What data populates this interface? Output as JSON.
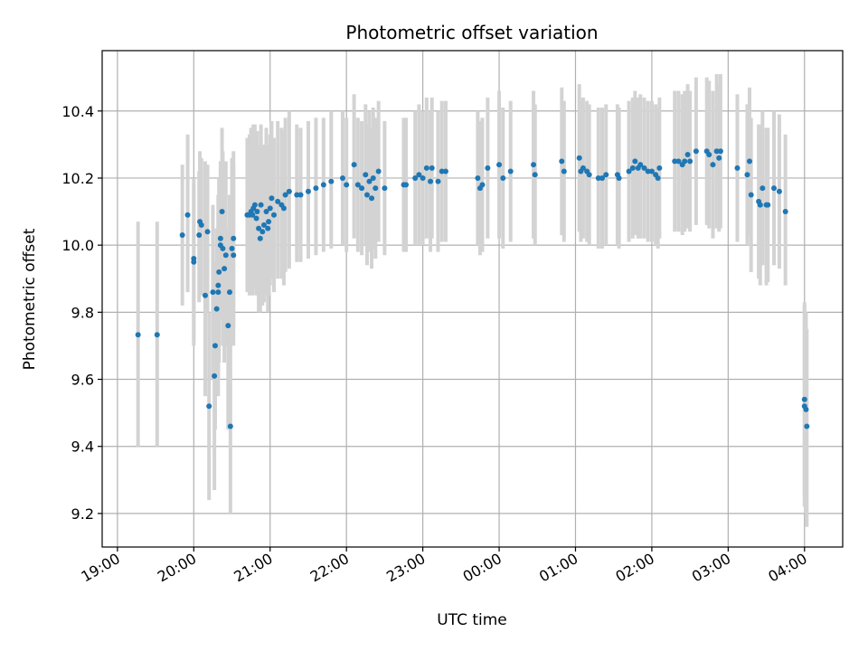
{
  "chart_data": {
    "type": "scatter",
    "title": "Photometric offset variation",
    "xlabel": "UTC time",
    "ylabel": "Photometric offset",
    "x_tick_labels": [
      "19:00",
      "20:00",
      "21:00",
      "22:00",
      "23:00",
      "00:00",
      "01:00",
      "02:00",
      "03:00",
      "04:00"
    ],
    "x_tick_hours": [
      0,
      1,
      2,
      3,
      4,
      5,
      6,
      7,
      8,
      9
    ],
    "x_axis_start": "19:00",
    "x_unit": "hours",
    "xlim": [
      -0.2,
      9.5
    ],
    "y_ticks": [
      9.2,
      9.4,
      9.6,
      9.8,
      10.0,
      10.2,
      10.4
    ],
    "y_tick_labels": [
      "9.2",
      "9.4",
      "9.6",
      "9.8",
      "10.0",
      "10.2",
      "10.4"
    ],
    "ylim": [
      9.1,
      10.58
    ],
    "grid": true,
    "colors": {
      "point": "#1f77b4",
      "errorbar": "#d3d3d3",
      "grid": "#b0b0b0"
    },
    "points": [
      [
        0.27,
        9.733,
        9.4,
        10.07
      ],
      [
        0.52,
        9.733,
        9.4,
        10.07
      ],
      [
        0.85,
        10.03,
        9.82,
        10.24
      ],
      [
        0.92,
        10.09,
        9.86,
        10.33
      ],
      [
        1.0,
        9.96,
        9.7,
        10.2
      ],
      [
        1.0,
        9.95,
        9.72,
        10.18
      ],
      [
        1.07,
        10.03,
        9.83,
        10.22
      ],
      [
        1.08,
        10.07,
        9.86,
        10.28
      ],
      [
        1.1,
        10.06,
        9.85,
        10.26
      ],
      [
        1.15,
        9.85,
        9.55,
        10.25
      ],
      [
        1.18,
        10.04,
        9.8,
        10.24
      ],
      [
        1.2,
        9.52,
        9.24,
        9.8
      ],
      [
        1.25,
        9.86,
        9.6,
        10.12
      ],
      [
        1.27,
        9.61,
        9.27,
        9.9
      ],
      [
        1.28,
        9.7,
        9.45,
        9.95
      ],
      [
        1.3,
        9.81,
        9.55,
        10.05
      ],
      [
        1.32,
        9.86,
        9.55,
        10.15
      ],
      [
        1.32,
        9.88,
        9.6,
        10.1
      ],
      [
        1.33,
        9.92,
        9.65,
        10.2
      ],
      [
        1.35,
        10.02,
        9.8,
        10.25
      ],
      [
        1.35,
        10.0,
        9.78,
        10.22
      ],
      [
        1.37,
        10.1,
        9.84,
        10.35
      ],
      [
        1.38,
        9.99,
        9.7,
        10.28
      ],
      [
        1.4,
        9.93,
        9.65,
        10.2
      ],
      [
        1.42,
        9.97,
        9.7,
        10.25
      ],
      [
        1.45,
        9.76,
        9.45,
        10.05
      ],
      [
        1.47,
        9.86,
        9.55,
        10.15
      ],
      [
        1.48,
        9.46,
        9.2,
        9.75
      ],
      [
        1.5,
        9.99,
        9.72,
        10.26
      ],
      [
        1.52,
        10.02,
        9.75,
        10.28
      ],
      [
        1.52,
        9.97,
        9.7,
        10.24
      ],
      [
        1.7,
        10.09,
        9.86,
        10.32
      ],
      [
        1.73,
        10.09,
        9.85,
        10.33
      ],
      [
        1.75,
        10.1,
        9.88,
        10.35
      ],
      [
        1.77,
        10.09,
        9.85,
        10.33
      ],
      [
        1.78,
        10.11,
        9.87,
        10.36
      ],
      [
        1.8,
        10.12,
        9.88,
        10.36
      ],
      [
        1.82,
        10.08,
        9.85,
        10.3
      ],
      [
        1.83,
        10.1,
        9.87,
        10.34
      ],
      [
        1.85,
        10.05,
        9.8,
        10.3
      ],
      [
        1.87,
        10.02,
        9.8,
        10.25
      ],
      [
        1.88,
        10.12,
        9.88,
        10.36
      ],
      [
        1.9,
        10.04,
        9.82,
        10.26
      ],
      [
        1.92,
        10.06,
        9.83,
        10.3
      ],
      [
        1.95,
        10.1,
        9.85,
        10.35
      ],
      [
        1.97,
        10.05,
        9.8,
        10.3
      ],
      [
        1.98,
        10.07,
        9.85,
        10.28
      ],
      [
        2.0,
        10.11,
        9.88,
        10.33
      ],
      [
        2.02,
        10.14,
        9.9,
        10.37
      ],
      [
        2.05,
        10.09,
        9.86,
        10.32
      ],
      [
        2.1,
        10.13,
        9.9,
        10.37
      ],
      [
        2.15,
        10.12,
        9.9,
        10.35
      ],
      [
        2.18,
        10.11,
        9.88,
        10.34
      ],
      [
        2.2,
        10.15,
        9.92,
        10.38
      ],
      [
        2.25,
        10.16,
        9.93,
        10.4
      ],
      [
        2.35,
        10.15,
        9.95,
        10.36
      ],
      [
        2.4,
        10.15,
        9.95,
        10.35
      ],
      [
        2.5,
        10.16,
        9.96,
        10.37
      ],
      [
        2.6,
        10.17,
        9.97,
        10.38
      ],
      [
        2.7,
        10.18,
        9.98,
        10.38
      ],
      [
        2.8,
        10.19,
        9.99,
        10.4
      ],
      [
        2.95,
        10.2,
        10.0,
        10.4
      ],
      [
        3.0,
        10.18,
        9.98,
        10.38
      ],
      [
        3.1,
        10.24,
        10.02,
        10.45
      ],
      [
        3.15,
        10.18,
        9.98,
        10.38
      ],
      [
        3.2,
        10.17,
        9.97,
        10.37
      ],
      [
        3.25,
        10.21,
        10.0,
        10.42
      ],
      [
        3.27,
        10.15,
        9.94,
        10.36
      ],
      [
        3.3,
        10.19,
        9.98,
        10.4
      ],
      [
        3.33,
        10.14,
        9.93,
        10.35
      ],
      [
        3.35,
        10.2,
        9.99,
        10.41
      ],
      [
        3.38,
        10.17,
        9.96,
        10.38
      ],
      [
        3.42,
        10.22,
        10.01,
        10.43
      ],
      [
        3.5,
        10.17,
        9.97,
        10.37
      ],
      [
        3.75,
        10.18,
        9.98,
        10.38
      ],
      [
        3.78,
        10.18,
        9.98,
        10.38
      ],
      [
        3.9,
        10.2,
        10.0,
        10.4
      ],
      [
        3.95,
        10.21,
        10.0,
        10.42
      ],
      [
        4.0,
        10.2,
        10.0,
        10.4
      ],
      [
        4.05,
        10.23,
        10.02,
        10.44
      ],
      [
        4.1,
        10.19,
        9.98,
        10.4
      ],
      [
        4.12,
        10.23,
        10.02,
        10.44
      ],
      [
        4.2,
        10.19,
        9.98,
        10.4
      ],
      [
        4.25,
        10.22,
        10.01,
        10.43
      ],
      [
        4.3,
        10.22,
        10.01,
        10.43
      ],
      [
        4.72,
        10.2,
        10.0,
        10.4
      ],
      [
        4.75,
        10.17,
        9.97,
        10.37
      ],
      [
        4.78,
        10.18,
        9.98,
        10.38
      ],
      [
        4.85,
        10.23,
        10.02,
        10.44
      ],
      [
        5.0,
        10.24,
        10.02,
        10.46
      ],
      [
        5.05,
        10.2,
        9.99,
        10.41
      ],
      [
        5.15,
        10.22,
        10.01,
        10.43
      ],
      [
        5.45,
        10.24,
        10.02,
        10.46
      ],
      [
        5.47,
        10.21,
        10.0,
        10.42
      ],
      [
        5.82,
        10.25,
        10.03,
        10.47
      ],
      [
        5.85,
        10.22,
        10.01,
        10.43
      ],
      [
        6.05,
        10.26,
        10.04,
        10.48
      ],
      [
        6.07,
        10.22,
        10.01,
        10.43
      ],
      [
        6.1,
        10.23,
        10.02,
        10.44
      ],
      [
        6.15,
        10.22,
        10.01,
        10.43
      ],
      [
        6.18,
        10.21,
        10.0,
        10.42
      ],
      [
        6.3,
        10.2,
        9.99,
        10.41
      ],
      [
        6.35,
        10.2,
        9.99,
        10.41
      ],
      [
        6.4,
        10.21,
        10.0,
        10.42
      ],
      [
        6.55,
        10.21,
        10.0,
        10.42
      ],
      [
        6.57,
        10.2,
        9.99,
        10.41
      ],
      [
        6.7,
        10.22,
        10.01,
        10.43
      ],
      [
        6.75,
        10.23,
        10.02,
        10.44
      ],
      [
        6.78,
        10.25,
        10.03,
        10.46
      ],
      [
        6.82,
        10.23,
        10.02,
        10.44
      ],
      [
        6.85,
        10.24,
        10.02,
        10.45
      ],
      [
        6.9,
        10.23,
        10.02,
        10.44
      ],
      [
        6.95,
        10.22,
        10.01,
        10.43
      ],
      [
        7.0,
        10.22,
        10.01,
        10.43
      ],
      [
        7.05,
        10.21,
        10.0,
        10.42
      ],
      [
        7.08,
        10.2,
        9.99,
        10.41
      ],
      [
        7.1,
        10.23,
        10.02,
        10.44
      ],
      [
        7.3,
        10.25,
        10.04,
        10.46
      ],
      [
        7.35,
        10.25,
        10.04,
        10.46
      ],
      [
        7.4,
        10.24,
        10.03,
        10.45
      ],
      [
        7.43,
        10.25,
        10.04,
        10.46
      ],
      [
        7.47,
        10.27,
        10.05,
        10.48
      ],
      [
        7.5,
        10.25,
        10.04,
        10.46
      ],
      [
        7.58,
        10.28,
        10.06,
        10.5
      ],
      [
        7.72,
        10.28,
        10.06,
        10.5
      ],
      [
        7.75,
        10.27,
        10.05,
        10.49
      ],
      [
        7.8,
        10.24,
        10.02,
        10.46
      ],
      [
        7.85,
        10.28,
        10.05,
        10.51
      ],
      [
        7.88,
        10.26,
        10.04,
        10.48
      ],
      [
        7.9,
        10.28,
        10.05,
        10.51
      ],
      [
        8.12,
        10.23,
        10.01,
        10.45
      ],
      [
        8.25,
        10.21,
        10.0,
        10.42
      ],
      [
        8.28,
        10.25,
        10.03,
        10.47
      ],
      [
        8.3,
        10.15,
        9.92,
        10.38
      ],
      [
        8.4,
        10.13,
        9.9,
        10.36
      ],
      [
        8.42,
        10.12,
        9.88,
        10.36
      ],
      [
        8.45,
        10.17,
        9.94,
        10.4
      ],
      [
        8.5,
        10.12,
        9.88,
        10.35
      ],
      [
        8.52,
        10.12,
        9.89,
        10.35
      ],
      [
        8.6,
        10.17,
        9.94,
        10.4
      ],
      [
        8.67,
        10.16,
        9.93,
        10.39
      ],
      [
        8.75,
        10.1,
        9.88,
        10.33
      ],
      [
        9.0,
        9.54,
        9.25,
        9.83
      ],
      [
        9.0,
        9.52,
        9.22,
        9.82
      ],
      [
        9.02,
        9.51,
        9.2,
        9.8
      ],
      [
        9.03,
        9.46,
        9.16,
        9.75
      ]
    ]
  }
}
